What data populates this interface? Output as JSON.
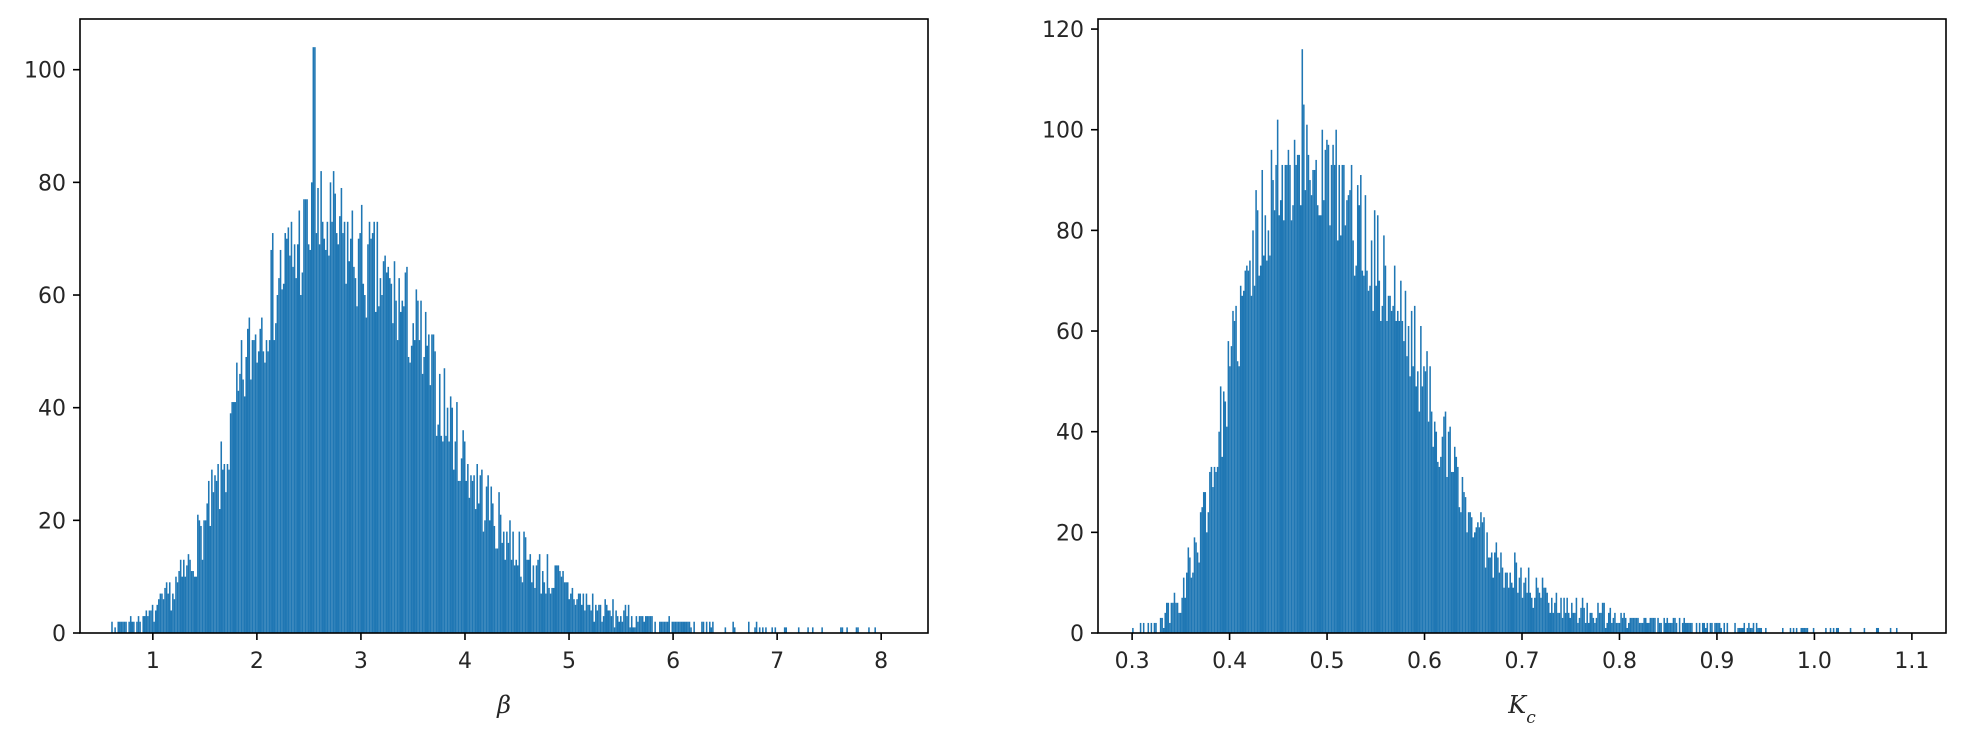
{
  "chart_data": [
    {
      "type": "bar",
      "subtype": "histogram",
      "title": "",
      "xlabel": "β",
      "ylabel": "",
      "xlim": [
        0.3,
        8.45
      ],
      "ylim": [
        0,
        109
      ],
      "xticks": [
        1,
        2,
        3,
        4,
        5,
        6,
        7,
        8
      ],
      "yticks": [
        0,
        20,
        40,
        60,
        80,
        100
      ],
      "grid": false,
      "color": "#1f77b4",
      "bins": 500,
      "x_range": [
        0.6,
        8.1
      ],
      "peak_x": 2.55,
      "peak_count": 104,
      "distribution": {
        "x": [
          0.6,
          0.9,
          1.1,
          1.3,
          1.5,
          1.7,
          1.9,
          2.1,
          2.3,
          2.5,
          2.7,
          2.9,
          3.1,
          3.3,
          3.5,
          3.7,
          3.9,
          4.1,
          4.3,
          4.5,
          4.7,
          4.9,
          5.1,
          5.3,
          5.5,
          5.8,
          6.1,
          6.5,
          7.0,
          7.5,
          8.1
        ],
        "count": [
          1,
          2,
          5,
          10,
          19,
          30,
          48,
          59,
          66,
          71,
          72,
          68,
          64,
          60,
          55,
          45,
          35,
          27,
          20,
          15,
          11,
          9,
          6,
          4,
          3,
          2,
          1.5,
          1,
          0.5,
          0.3,
          0.2
        ]
      }
    },
    {
      "type": "bar",
      "subtype": "histogram",
      "title": "",
      "xlabel": "K_c",
      "xlabel_main": "K",
      "xlabel_sub": "c",
      "ylabel": "",
      "xlim": [
        0.265,
        1.135
      ],
      "ylim": [
        0,
        122
      ],
      "xticks": [
        0.3,
        0.4,
        0.5,
        0.6,
        0.7,
        0.8,
        0.9,
        1.0,
        1.1
      ],
      "xtick_labels": [
        "0.3",
        "0.4",
        "0.5",
        "0.6",
        "0.7",
        "0.8",
        "0.9",
        "1.0",
        "1.1"
      ],
      "yticks": [
        0,
        20,
        40,
        60,
        80,
        100,
        120
      ],
      "grid": false,
      "color": "#1f77b4",
      "bins": 500,
      "x_range": [
        0.3,
        1.09
      ],
      "peak_x": 0.475,
      "peak_count": 116,
      "distribution": {
        "x": [
          0.3,
          0.33,
          0.35,
          0.37,
          0.39,
          0.41,
          0.43,
          0.45,
          0.47,
          0.49,
          0.51,
          0.53,
          0.55,
          0.57,
          0.59,
          0.61,
          0.63,
          0.65,
          0.67,
          0.69,
          0.71,
          0.73,
          0.75,
          0.78,
          0.81,
          0.85,
          0.9,
          0.95,
          1.0,
          1.05,
          1.09
        ],
        "count": [
          0.5,
          2,
          8,
          20,
          40,
          62,
          80,
          92,
          95,
          93,
          88,
          82,
          74,
          66,
          56,
          44,
          32,
          22,
          16,
          12,
          9,
          7,
          5,
          3.5,
          2.5,
          1.8,
          1.2,
          0.8,
          0.4,
          0.3,
          0.2
        ]
      }
    }
  ]
}
